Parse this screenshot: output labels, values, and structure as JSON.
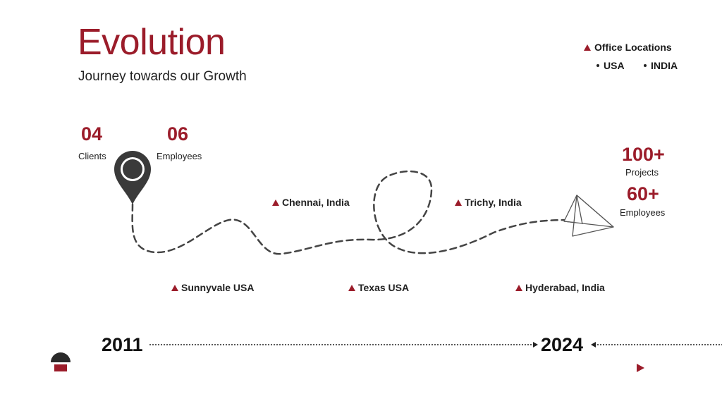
{
  "header": {
    "title": "Evolution",
    "subtitle": "Journey towards our Growth"
  },
  "start_stats": [
    {
      "value": "04",
      "label": "Clients"
    },
    {
      "value": "06",
      "label": "Employees"
    }
  ],
  "end_stats": [
    {
      "value": "100+",
      "label": "Projects"
    },
    {
      "value": "60+",
      "label": "Employees"
    }
  ],
  "legend": {
    "heading": "Office Locations",
    "items": [
      "USA",
      "INDIA"
    ]
  },
  "locations_top": [
    "Chennai, India",
    "Trichy, India"
  ],
  "locations_bottom": [
    "Sunnyvale USA",
    "Texas USA",
    "Hyderabad, India"
  ],
  "timeline": {
    "start_year": "2011",
    "end_year": "2024"
  },
  "colors": {
    "accent": "#9b1c2a",
    "path": "#444444",
    "pin": "#3a3a3a"
  },
  "icons": [
    "map-pin-icon",
    "paper-plane-icon",
    "logo-icon",
    "play-arrow-icon"
  ]
}
